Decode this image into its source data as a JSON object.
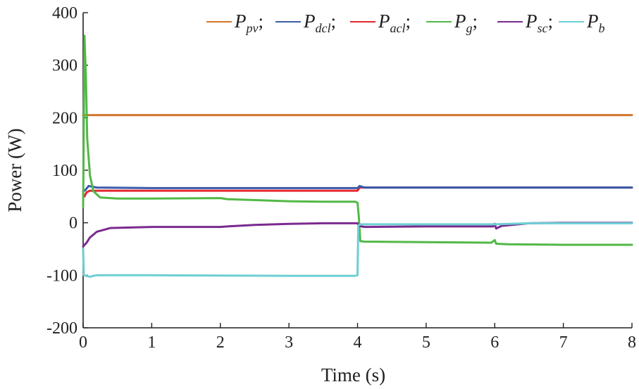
{
  "chart_data": {
    "type": "line",
    "title": "",
    "xlabel": "Time (s)",
    "ylabel": "Power (W)",
    "xlim": [
      0,
      8
    ],
    "ylim": [
      -200,
      400
    ],
    "xticks": [
      0,
      1,
      2,
      3,
      4,
      5,
      6,
      7,
      8
    ],
    "yticks": [
      -200,
      -100,
      0,
      100,
      200,
      300,
      400
    ],
    "xtick_labels": [
      "0",
      "1",
      "2",
      "3",
      "4",
      "5",
      "6",
      "7",
      "8"
    ],
    "ytick_labels": [
      "-200",
      "-100",
      "0",
      "100",
      "200",
      "300",
      "400"
    ],
    "grid": false,
    "legend_position": "top",
    "series": [
      {
        "key": "pv",
        "name": "P",
        "sub": "pv",
        "color": "#d2762b",
        "points": [
          [
            0,
            205
          ],
          [
            0.02,
            205
          ],
          [
            8,
            205
          ]
        ]
      },
      {
        "key": "dcl",
        "name": "P",
        "sub": "dcl",
        "color": "#3a5ba9",
        "points": [
          [
            0,
            60
          ],
          [
            0.03,
            62
          ],
          [
            0.08,
            70
          ],
          [
            0.2,
            67
          ],
          [
            1,
            66
          ],
          [
            4,
            66
          ],
          [
            4.03,
            70
          ],
          [
            4.1,
            67
          ],
          [
            8,
            67
          ]
        ]
      },
      {
        "key": "acl",
        "name": "P",
        "sub": "acl",
        "color": "#e3262f",
        "points": [
          [
            0,
            55
          ],
          [
            0.02,
            50
          ],
          [
            0.05,
            58
          ],
          [
            0.1,
            61
          ],
          [
            1,
            61
          ],
          [
            4,
            61
          ],
          [
            4.03,
            67
          ],
          [
            4.1,
            67
          ],
          [
            8,
            67
          ]
        ]
      },
      {
        "key": "g",
        "name": "P",
        "sub": "g",
        "color": "#52b847",
        "points": [
          [
            0,
            30
          ],
          [
            0.02,
            356
          ],
          [
            0.04,
            280
          ],
          [
            0.06,
            160
          ],
          [
            0.1,
            90
          ],
          [
            0.15,
            60
          ],
          [
            0.25,
            48
          ],
          [
            0.5,
            46
          ],
          [
            1,
            46
          ],
          [
            2,
            47
          ],
          [
            2.1,
            45
          ],
          [
            3,
            41
          ],
          [
            3.5,
            40
          ],
          [
            3.97,
            40
          ],
          [
            4.0,
            38
          ],
          [
            4.02,
            10
          ],
          [
            4.04,
            -35
          ],
          [
            4.1,
            -36
          ],
          [
            5,
            -37
          ],
          [
            5.95,
            -38
          ],
          [
            6,
            -33
          ],
          [
            6.02,
            -40
          ],
          [
            6.2,
            -41
          ],
          [
            7,
            -42
          ],
          [
            7.5,
            -42
          ],
          [
            8,
            -42
          ]
        ]
      },
      {
        "key": "sc",
        "name": "P",
        "sub": "sc",
        "color": "#7a2a8f",
        "points": [
          [
            0,
            -45
          ],
          [
            0.05,
            -38
          ],
          [
            0.1,
            -28
          ],
          [
            0.2,
            -17
          ],
          [
            0.4,
            -10
          ],
          [
            1,
            -8
          ],
          [
            2,
            -8
          ],
          [
            2.1,
            -7
          ],
          [
            2.5,
            -4
          ],
          [
            3,
            -2
          ],
          [
            3.5,
            -1
          ],
          [
            4,
            -1
          ],
          [
            4.02,
            -6
          ],
          [
            4.1,
            -8
          ],
          [
            5,
            -7
          ],
          [
            5.98,
            -7
          ],
          [
            6.0,
            -2
          ],
          [
            6.02,
            -11
          ],
          [
            6.1,
            -6
          ],
          [
            6.5,
            -1
          ],
          [
            7,
            0
          ],
          [
            8,
            0
          ]
        ]
      },
      {
        "key": "b",
        "name": "P",
        "sub": "b",
        "color": "#6ccfd3",
        "points": [
          [
            0,
            -50
          ],
          [
            0.01,
            -100
          ],
          [
            0.1,
            -103
          ],
          [
            0.15,
            -101
          ],
          [
            0.2,
            -100
          ],
          [
            1,
            -100
          ],
          [
            3,
            -101
          ],
          [
            3.95,
            -101
          ],
          [
            4.0,
            -100
          ],
          [
            4.01,
            -5
          ],
          [
            4.05,
            -3
          ],
          [
            4.2,
            -3
          ],
          [
            6,
            -3
          ],
          [
            6.5,
            -1
          ],
          [
            8,
            -1
          ]
        ]
      }
    ]
  }
}
